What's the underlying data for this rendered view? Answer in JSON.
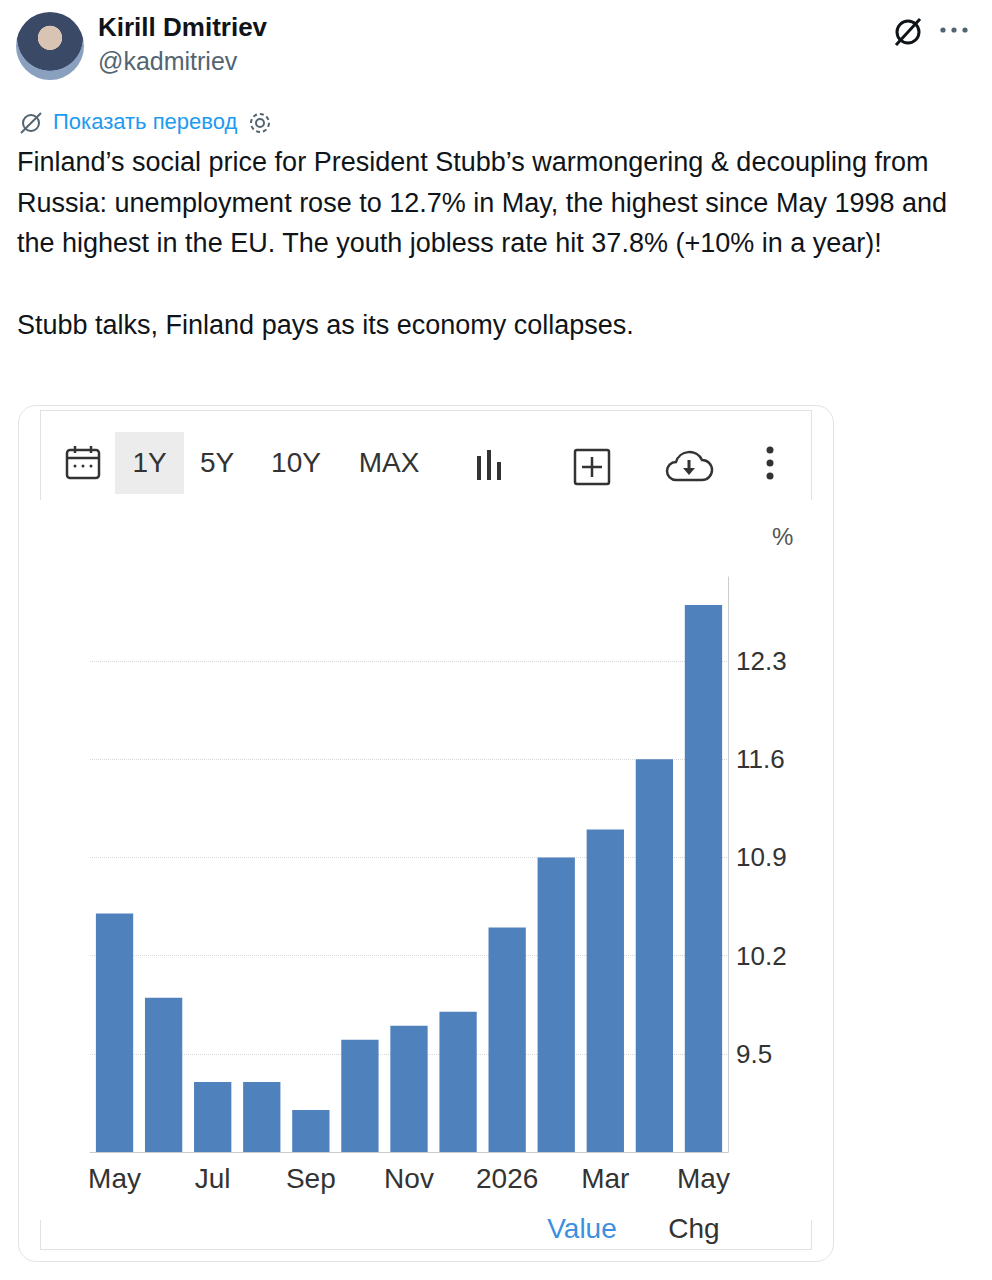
{
  "post": {
    "name": "Kirill Dmitriev",
    "handle": "@kadmitriev",
    "translate": "Показать перевод",
    "text": [
      "Finland’s social price for President Stubb’s warmongering & decoupling from Russia: unemployment rose to 12.7% in May, the highest since May 1998 and the highest in the EU. The youth jobless rate hit 37.8% (+10% in a year)!",
      "Stubb talks, Finland pays as its economy collapses."
    ]
  },
  "toolbar": [
    "1Y",
    "5Y",
    "10Y",
    "MAX"
  ],
  "toolbar_selected": "1Y",
  "footer": [
    "Value",
    "Chg"
  ],
  "chart_data": {
    "type": "bar",
    "y_label": "%",
    "categories": [
      "May",
      null,
      "Jul",
      null,
      "Sep",
      null,
      "Nov",
      null,
      "2026",
      null,
      "Mar",
      null,
      "May"
    ],
    "values": [
      10.5,
      9.9,
      9.3,
      9.3,
      9.1,
      9.6,
      9.7,
      9.8,
      10.4,
      10.9,
      11.1,
      11.6,
      12.7
    ],
    "color": "#4f81bd",
    "ylim": [
      8.8,
      12.9
    ],
    "yticks": [
      9.5,
      10.2,
      10.9,
      11.6,
      12.3
    ],
    "grid": true
  }
}
